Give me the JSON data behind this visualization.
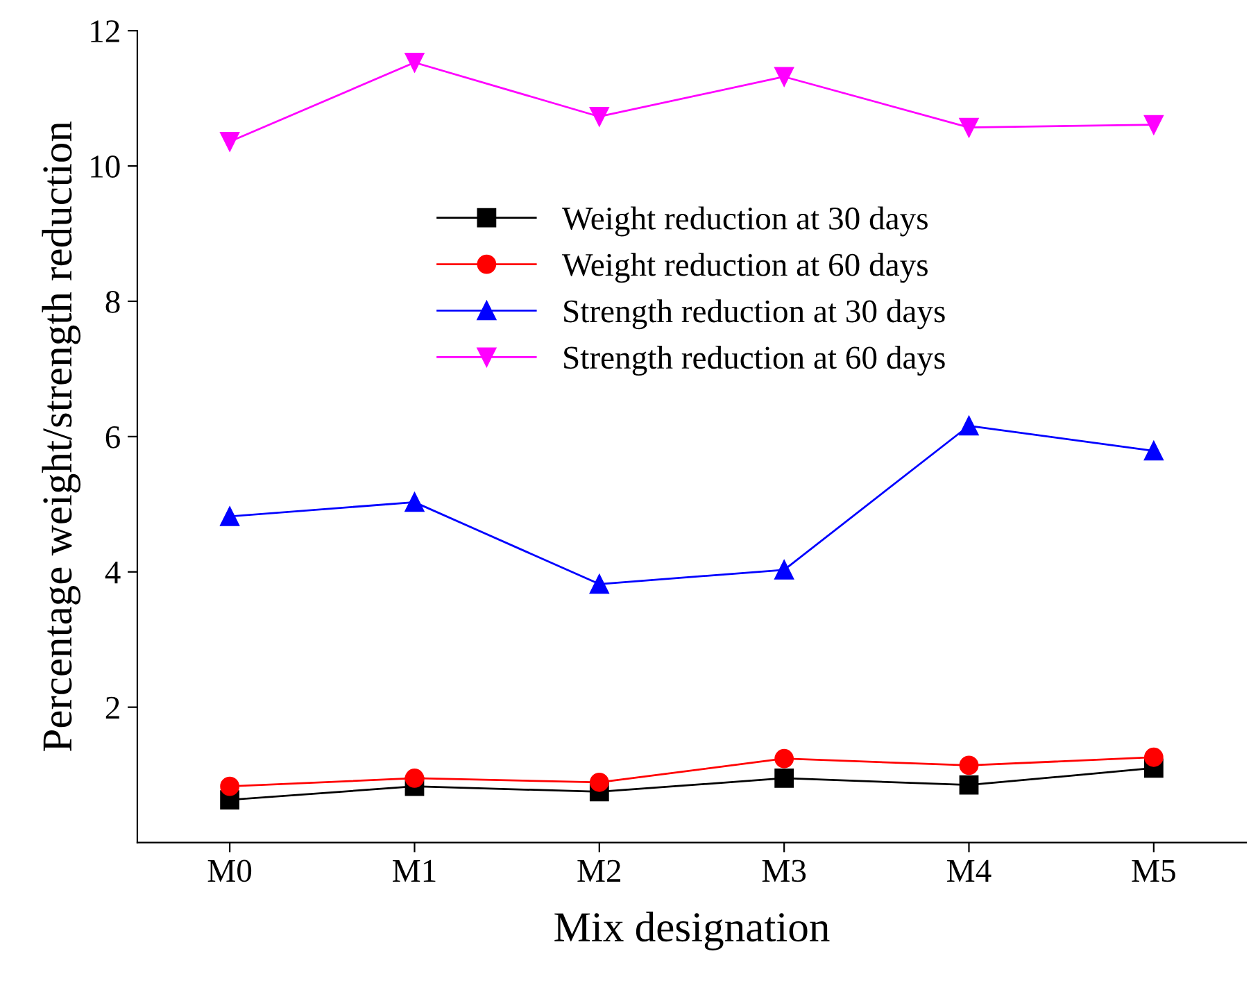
{
  "chart_data": {
    "type": "line",
    "xlabel": "Mix designation",
    "ylabel": "Percentage weight/strength reduction",
    "categories": [
      "M0",
      "M1",
      "M2",
      "M3",
      "M4",
      "M5"
    ],
    "series": [
      {
        "name": "Weight reduction at 30 days",
        "color": "#000000",
        "marker": "square",
        "values": [
          0.63,
          0.83,
          0.75,
          0.95,
          0.85,
          1.1
        ]
      },
      {
        "name": "Weight reduction at 60 days",
        "color": "#ff0000",
        "marker": "circle",
        "values": [
          0.83,
          0.95,
          0.89,
          1.24,
          1.14,
          1.26
        ]
      },
      {
        "name": "Strength reduction at 30 days",
        "color": "#0000ff",
        "marker": "triangle",
        "values": [
          4.82,
          5.03,
          3.82,
          4.03,
          6.16,
          5.79
        ]
      },
      {
        "name": "Strength reduction at 60 days",
        "color": "#ff00ff",
        "marker": "triangle_down",
        "values": [
          10.36,
          11.53,
          10.73,
          11.32,
          10.57,
          10.61
        ]
      }
    ],
    "ylim": [
      0,
      12
    ],
    "yticks": [
      2,
      4,
      6,
      8,
      10,
      12
    ],
    "grid": false,
    "legend": "top",
    "line_style": "solid"
  }
}
